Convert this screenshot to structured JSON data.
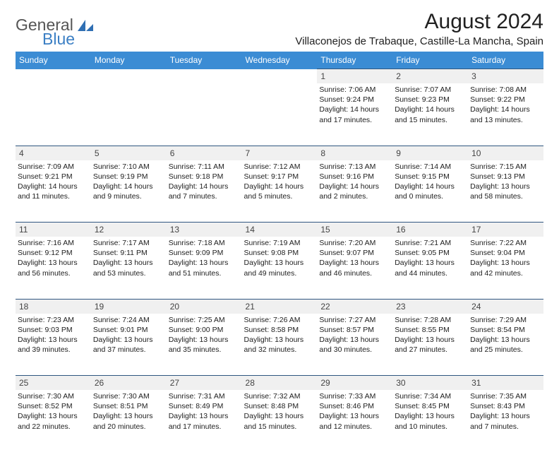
{
  "logo": {
    "text1": "General",
    "text2": "Blue"
  },
  "title": "August 2024",
  "location": "Villaconejos de Trabaque, Castille-La Mancha, Spain",
  "colors": {
    "header_bg": "#3b8cd4",
    "header_text": "#ffffff",
    "daynum_bg": "#f0f0f0",
    "daynum_border": "#2f5680",
    "body_text": "#212121",
    "logo_gray": "#555555",
    "logo_blue": "#3b7fc4"
  },
  "day_headers": [
    "Sunday",
    "Monday",
    "Tuesday",
    "Wednesday",
    "Thursday",
    "Friday",
    "Saturday"
  ],
  "weeks": [
    [
      {
        "n": "",
        "sunrise": "",
        "sunset": "",
        "daylight1": "",
        "daylight2": ""
      },
      {
        "n": "",
        "sunrise": "",
        "sunset": "",
        "daylight1": "",
        "daylight2": ""
      },
      {
        "n": "",
        "sunrise": "",
        "sunset": "",
        "daylight1": "",
        "daylight2": ""
      },
      {
        "n": "",
        "sunrise": "",
        "sunset": "",
        "daylight1": "",
        "daylight2": ""
      },
      {
        "n": "1",
        "sunrise": "Sunrise: 7:06 AM",
        "sunset": "Sunset: 9:24 PM",
        "daylight1": "Daylight: 14 hours",
        "daylight2": "and 17 minutes."
      },
      {
        "n": "2",
        "sunrise": "Sunrise: 7:07 AM",
        "sunset": "Sunset: 9:23 PM",
        "daylight1": "Daylight: 14 hours",
        "daylight2": "and 15 minutes."
      },
      {
        "n": "3",
        "sunrise": "Sunrise: 7:08 AM",
        "sunset": "Sunset: 9:22 PM",
        "daylight1": "Daylight: 14 hours",
        "daylight2": "and 13 minutes."
      }
    ],
    [
      {
        "n": "4",
        "sunrise": "Sunrise: 7:09 AM",
        "sunset": "Sunset: 9:21 PM",
        "daylight1": "Daylight: 14 hours",
        "daylight2": "and 11 minutes."
      },
      {
        "n": "5",
        "sunrise": "Sunrise: 7:10 AM",
        "sunset": "Sunset: 9:19 PM",
        "daylight1": "Daylight: 14 hours",
        "daylight2": "and 9 minutes."
      },
      {
        "n": "6",
        "sunrise": "Sunrise: 7:11 AM",
        "sunset": "Sunset: 9:18 PM",
        "daylight1": "Daylight: 14 hours",
        "daylight2": "and 7 minutes."
      },
      {
        "n": "7",
        "sunrise": "Sunrise: 7:12 AM",
        "sunset": "Sunset: 9:17 PM",
        "daylight1": "Daylight: 14 hours",
        "daylight2": "and 5 minutes."
      },
      {
        "n": "8",
        "sunrise": "Sunrise: 7:13 AM",
        "sunset": "Sunset: 9:16 PM",
        "daylight1": "Daylight: 14 hours",
        "daylight2": "and 2 minutes."
      },
      {
        "n": "9",
        "sunrise": "Sunrise: 7:14 AM",
        "sunset": "Sunset: 9:15 PM",
        "daylight1": "Daylight: 14 hours",
        "daylight2": "and 0 minutes."
      },
      {
        "n": "10",
        "sunrise": "Sunrise: 7:15 AM",
        "sunset": "Sunset: 9:13 PM",
        "daylight1": "Daylight: 13 hours",
        "daylight2": "and 58 minutes."
      }
    ],
    [
      {
        "n": "11",
        "sunrise": "Sunrise: 7:16 AM",
        "sunset": "Sunset: 9:12 PM",
        "daylight1": "Daylight: 13 hours",
        "daylight2": "and 56 minutes."
      },
      {
        "n": "12",
        "sunrise": "Sunrise: 7:17 AM",
        "sunset": "Sunset: 9:11 PM",
        "daylight1": "Daylight: 13 hours",
        "daylight2": "and 53 minutes."
      },
      {
        "n": "13",
        "sunrise": "Sunrise: 7:18 AM",
        "sunset": "Sunset: 9:09 PM",
        "daylight1": "Daylight: 13 hours",
        "daylight2": "and 51 minutes."
      },
      {
        "n": "14",
        "sunrise": "Sunrise: 7:19 AM",
        "sunset": "Sunset: 9:08 PM",
        "daylight1": "Daylight: 13 hours",
        "daylight2": "and 49 minutes."
      },
      {
        "n": "15",
        "sunrise": "Sunrise: 7:20 AM",
        "sunset": "Sunset: 9:07 PM",
        "daylight1": "Daylight: 13 hours",
        "daylight2": "and 46 minutes."
      },
      {
        "n": "16",
        "sunrise": "Sunrise: 7:21 AM",
        "sunset": "Sunset: 9:05 PM",
        "daylight1": "Daylight: 13 hours",
        "daylight2": "and 44 minutes."
      },
      {
        "n": "17",
        "sunrise": "Sunrise: 7:22 AM",
        "sunset": "Sunset: 9:04 PM",
        "daylight1": "Daylight: 13 hours",
        "daylight2": "and 42 minutes."
      }
    ],
    [
      {
        "n": "18",
        "sunrise": "Sunrise: 7:23 AM",
        "sunset": "Sunset: 9:03 PM",
        "daylight1": "Daylight: 13 hours",
        "daylight2": "and 39 minutes."
      },
      {
        "n": "19",
        "sunrise": "Sunrise: 7:24 AM",
        "sunset": "Sunset: 9:01 PM",
        "daylight1": "Daylight: 13 hours",
        "daylight2": "and 37 minutes."
      },
      {
        "n": "20",
        "sunrise": "Sunrise: 7:25 AM",
        "sunset": "Sunset: 9:00 PM",
        "daylight1": "Daylight: 13 hours",
        "daylight2": "and 35 minutes."
      },
      {
        "n": "21",
        "sunrise": "Sunrise: 7:26 AM",
        "sunset": "Sunset: 8:58 PM",
        "daylight1": "Daylight: 13 hours",
        "daylight2": "and 32 minutes."
      },
      {
        "n": "22",
        "sunrise": "Sunrise: 7:27 AM",
        "sunset": "Sunset: 8:57 PM",
        "daylight1": "Daylight: 13 hours",
        "daylight2": "and 30 minutes."
      },
      {
        "n": "23",
        "sunrise": "Sunrise: 7:28 AM",
        "sunset": "Sunset: 8:55 PM",
        "daylight1": "Daylight: 13 hours",
        "daylight2": "and 27 minutes."
      },
      {
        "n": "24",
        "sunrise": "Sunrise: 7:29 AM",
        "sunset": "Sunset: 8:54 PM",
        "daylight1": "Daylight: 13 hours",
        "daylight2": "and 25 minutes."
      }
    ],
    [
      {
        "n": "25",
        "sunrise": "Sunrise: 7:30 AM",
        "sunset": "Sunset: 8:52 PM",
        "daylight1": "Daylight: 13 hours",
        "daylight2": "and 22 minutes."
      },
      {
        "n": "26",
        "sunrise": "Sunrise: 7:30 AM",
        "sunset": "Sunset: 8:51 PM",
        "daylight1": "Daylight: 13 hours",
        "daylight2": "and 20 minutes."
      },
      {
        "n": "27",
        "sunrise": "Sunrise: 7:31 AM",
        "sunset": "Sunset: 8:49 PM",
        "daylight1": "Daylight: 13 hours",
        "daylight2": "and 17 minutes."
      },
      {
        "n": "28",
        "sunrise": "Sunrise: 7:32 AM",
        "sunset": "Sunset: 8:48 PM",
        "daylight1": "Daylight: 13 hours",
        "daylight2": "and 15 minutes."
      },
      {
        "n": "29",
        "sunrise": "Sunrise: 7:33 AM",
        "sunset": "Sunset: 8:46 PM",
        "daylight1": "Daylight: 13 hours",
        "daylight2": "and 12 minutes."
      },
      {
        "n": "30",
        "sunrise": "Sunrise: 7:34 AM",
        "sunset": "Sunset: 8:45 PM",
        "daylight1": "Daylight: 13 hours",
        "daylight2": "and 10 minutes."
      },
      {
        "n": "31",
        "sunrise": "Sunrise: 7:35 AM",
        "sunset": "Sunset: 8:43 PM",
        "daylight1": "Daylight: 13 hours",
        "daylight2": "and 7 minutes."
      }
    ]
  ]
}
